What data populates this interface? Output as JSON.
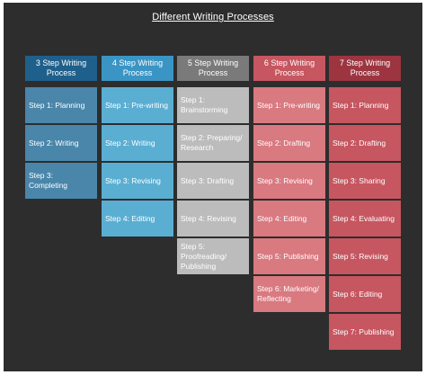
{
  "title": "Different Writing Processes",
  "columns": [
    {
      "header": "3 Step Writing Process",
      "header_color": "#1f5f8b",
      "step_color": "#4a86a9",
      "steps": [
        "Step 1: Planning",
        "Step 2: Writing",
        "Step 3: Completing"
      ]
    },
    {
      "header": "4 Step Writing Process",
      "header_color": "#3a95c4",
      "step_color": "#5aaed2",
      "steps": [
        "Step 1: Pre-writing",
        "Step 2: Writing",
        "Step 3: Revising",
        "Step 4: Editing"
      ]
    },
    {
      "header": "5 Step Writing Process",
      "header_color": "#7a7a7a",
      "step_color": "#bcbcbc",
      "steps": [
        "Step 1: Brainstorming",
        "Step 2: Preparing/ Research",
        "Step 3: Drafting",
        "Step 4: Revising",
        "Step 5: Proofreading/ Publishing"
      ]
    },
    {
      "header": "6 Step Writing Process",
      "header_color": "#c65660",
      "step_color": "#d97980",
      "steps": [
        "Step 1: Pre-writing",
        "Step 2: Drafting",
        "Step 3: Revising",
        "Step 4: Editing",
        "Step 5: Publishing",
        "Step 6: Marketing/ Reflecting"
      ]
    },
    {
      "header": "7 Step Writing Process",
      "header_color": "#9c3540",
      "step_color": "#c65660",
      "steps": [
        "Step 1: Planning",
        "Step 2: Drafting",
        "Step 3: Sharing",
        "Step 4: Evaluating",
        "Step 5: Revising",
        "Step 6: Editing",
        "Step 7: Publishing"
      ]
    }
  ]
}
